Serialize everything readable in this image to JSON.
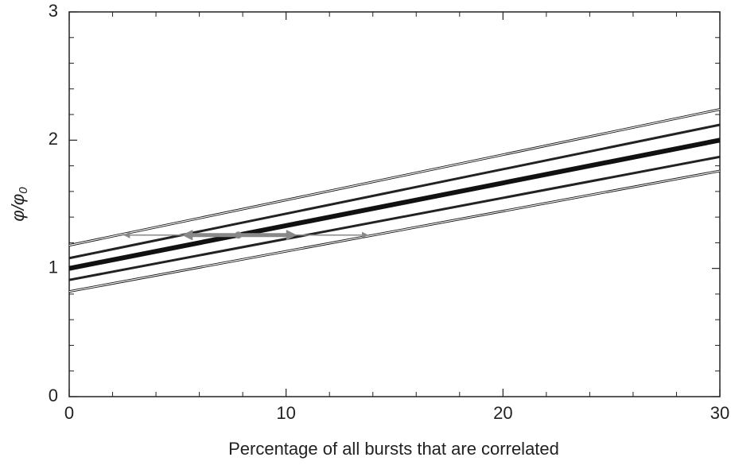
{
  "chart_data": {
    "type": "line",
    "xlabel": "Percentage of all bursts that are correlated",
    "ylabel": [
      "φ/φ",
      "0"
    ],
    "x": [
      0,
      30
    ],
    "series": [
      {
        "color": "#111111",
        "width": 3,
        "style": "outline",
        "values": [
          1.18,
          2.24
        ]
      },
      {
        "color": "#111111",
        "width": 3,
        "style": "outline",
        "values": [
          0.82,
          1.76
        ]
      },
      {
        "color": "#222222",
        "width": 3,
        "style": "solid",
        "values": [
          1.08,
          2.12
        ]
      },
      {
        "color": "#222222",
        "width": 3,
        "style": "solid",
        "values": [
          0.91,
          1.87
        ]
      },
      {
        "color": "#111111",
        "width": 6,
        "style": "solid",
        "values": [
          1,
          2
        ]
      }
    ],
    "arrows": [
      {
        "color": "#888888",
        "width": 1.5,
        "x": [
          2.5,
          13.8
        ],
        "y": 1.26
      },
      {
        "color": "#888888",
        "width": 5,
        "x": [
          5.2,
          10.5
        ],
        "y": 1.26
      }
    ],
    "point": {
      "color": "#888888",
      "x": 7.8,
      "y": 1.26
    },
    "xlim": [
      0,
      30
    ],
    "ylim": [
      0,
      3
    ],
    "xticks": [
      0,
      10,
      20,
      30
    ],
    "yticks": [
      0,
      1,
      2,
      3
    ],
    "xminorticks": [
      2,
      4,
      6,
      8,
      12,
      14,
      16,
      18,
      22,
      24,
      26,
      28
    ],
    "yminorticks": [
      0.2,
      0.4,
      0.6,
      0.8,
      1.2,
      1.4,
      1.6,
      1.8,
      2.2,
      2.4,
      2.6,
      2.8
    ]
  }
}
